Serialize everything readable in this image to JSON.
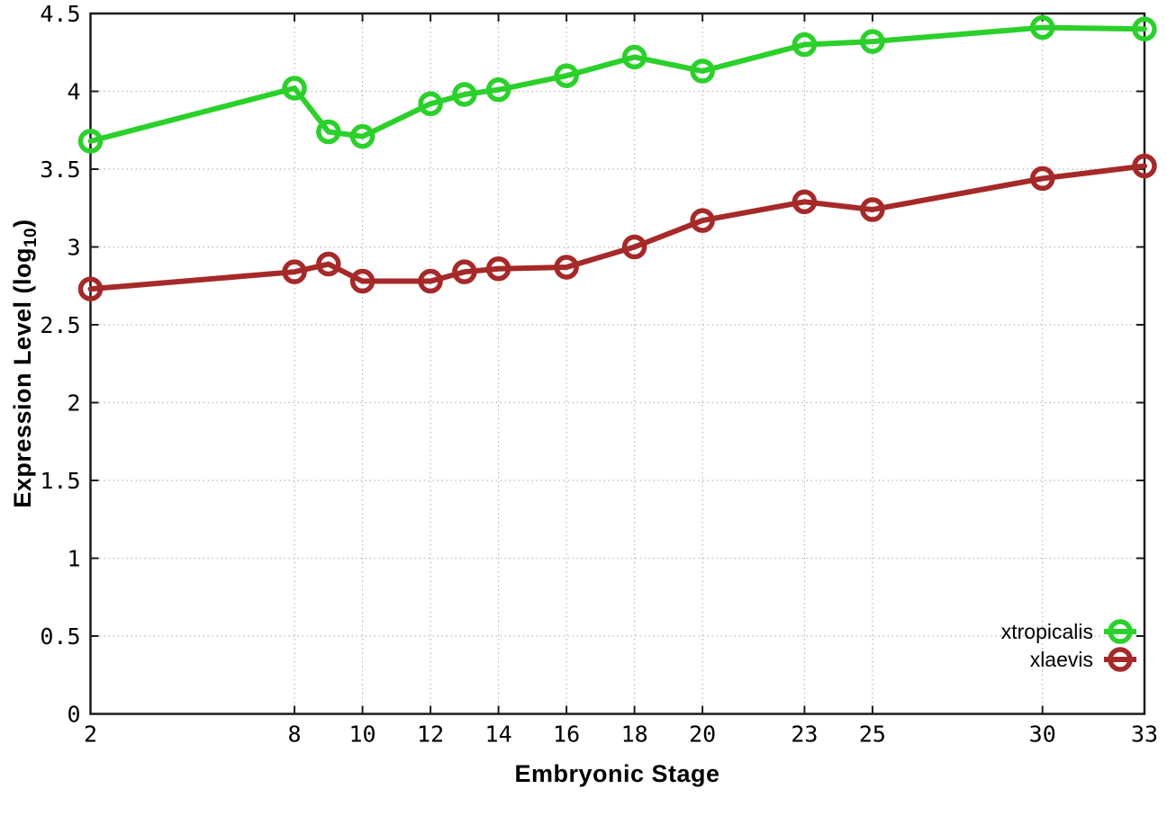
{
  "chart_data": {
    "type": "line",
    "title": "",
    "xlabel": "Embryonic Stage",
    "ylabel": "Expression Level (log10)",
    "ylabel_parts": {
      "prefix": "Expression Level (log",
      "subscript": "10",
      "suffix": ")"
    },
    "x": [
      2,
      8,
      9,
      10,
      12,
      13,
      14,
      16,
      18,
      20,
      23,
      25,
      30,
      33
    ],
    "series": [
      {
        "name": "xtropicalis",
        "color": "#2bd02b",
        "marker": "open-circle",
        "values": [
          3.68,
          4.02,
          3.74,
          3.71,
          3.92,
          3.98,
          4.01,
          4.1,
          4.22,
          4.13,
          4.3,
          4.32,
          4.41,
          4.4
        ]
      },
      {
        "name": "xlaevis",
        "color": "#a62929",
        "marker": "open-circle",
        "values": [
          2.73,
          2.84,
          2.89,
          2.78,
          2.78,
          2.84,
          2.86,
          2.87,
          3.0,
          3.17,
          3.29,
          3.24,
          3.44,
          3.52
        ]
      }
    ],
    "xticks": [
      2,
      8,
      10,
      12,
      14,
      16,
      18,
      20,
      23,
      25,
      30,
      33
    ],
    "xtick_labels": [
      "2",
      "8",
      "10",
      "12",
      "14",
      "16",
      "18",
      "20",
      "23",
      "25",
      "30",
      "33"
    ],
    "yticks": [
      0,
      0.5,
      1,
      1.5,
      2,
      2.5,
      3,
      3.5,
      4,
      4.5
    ],
    "ytick_labels": [
      "0",
      "0.5",
      "1",
      "1.5",
      "2",
      "2.5",
      "3",
      "3.5",
      "4",
      "4.5"
    ],
    "xlim": [
      2,
      33
    ],
    "ylim": [
      0,
      4.5
    ],
    "grid": true,
    "grid_style": "dotted",
    "legend_position": "bottom-right",
    "legend_entries": [
      "xtropicalis",
      "xlaevis"
    ]
  },
  "colors": {
    "background": "#ffffff",
    "border": "#1c1c1c",
    "grid": "#b8b8b8",
    "text": "#000000",
    "series_green": "#2bd02b",
    "series_red": "#a62929"
  }
}
